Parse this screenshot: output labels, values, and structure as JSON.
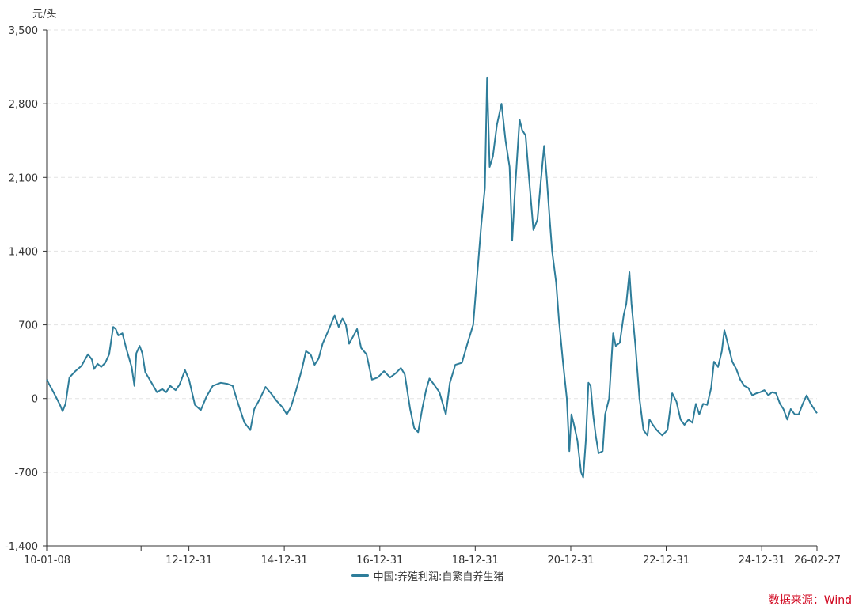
{
  "colors": {
    "series": "#2e7d9a",
    "axis": "#333333",
    "grid": "#e3e3e3",
    "source": "#d0021b"
  },
  "chart_data": {
    "type": "line",
    "y_unit": "元/头",
    "ylim": [
      -1400,
      3500
    ],
    "yticks": [
      "3,500",
      "2,800",
      "2,100",
      "1,400",
      "700",
      "0",
      "-700",
      "-1,400"
    ],
    "ytick_values": [
      3500,
      2800,
      2100,
      1400,
      700,
      0,
      -700,
      -1400
    ],
    "xlim": [
      "2010-01-08",
      "2026-02-27"
    ],
    "xtick_labels": [
      "10-01-08",
      "12-12-31",
      "14-12-31",
      "16-12-31",
      "18-12-31",
      "20-12-31",
      "22-12-31",
      "24-12-31",
      "26-02-27"
    ],
    "xtick_dates": [
      "2010-01-08",
      "2012-12-31",
      "2014-12-31",
      "2016-12-31",
      "2018-12-31",
      "2020-12-31",
      "2022-12-31",
      "2024-12-31",
      "2026-02-27"
    ],
    "minor_tick_dates": [
      "2011-12-31"
    ],
    "grid": "horizontal-dashed",
    "legend_position": "bottom-center",
    "series": [
      {
        "name": "中国:养殖利润:自繁自养生猪",
        "points": [
          [
            "2010-01-08",
            180
          ],
          [
            "2010-03-01",
            60
          ],
          [
            "2010-04-20",
            -60
          ],
          [
            "2010-05-10",
            -120
          ],
          [
            "2010-06-01",
            -50
          ],
          [
            "2010-07-01",
            200
          ],
          [
            "2010-08-15",
            260
          ],
          [
            "2010-10-01",
            310
          ],
          [
            "2010-11-20",
            420
          ],
          [
            "2010-12-20",
            370
          ],
          [
            "2011-01-05",
            280
          ],
          [
            "2011-02-01",
            330
          ],
          [
            "2011-03-01",
            300
          ],
          [
            "2011-04-01",
            340
          ],
          [
            "2011-05-01",
            420
          ],
          [
            "2011-06-01",
            680
          ],
          [
            "2011-06-20",
            660
          ],
          [
            "2011-07-10",
            600
          ],
          [
            "2011-08-10",
            620
          ],
          [
            "2011-09-10",
            470
          ],
          [
            "2011-10-20",
            300
          ],
          [
            "2011-11-10",
            120
          ],
          [
            "2011-11-25",
            430
          ],
          [
            "2011-12-20",
            500
          ],
          [
            "2012-01-10",
            430
          ],
          [
            "2012-02-01",
            250
          ],
          [
            "2012-03-15",
            160
          ],
          [
            "2012-05-01",
            60
          ],
          [
            "2012-06-10",
            90
          ],
          [
            "2012-07-10",
            60
          ],
          [
            "2012-08-10",
            120
          ],
          [
            "2012-09-20",
            80
          ],
          [
            "2012-10-20",
            130
          ],
          [
            "2012-12-01",
            270
          ],
          [
            "2013-01-01",
            180
          ],
          [
            "2013-02-15",
            -60
          ],
          [
            "2013-04-01",
            -110
          ],
          [
            "2013-05-15",
            20
          ],
          [
            "2013-07-01",
            120
          ],
          [
            "2013-09-01",
            150
          ],
          [
            "2013-10-20",
            140
          ],
          [
            "2013-12-01",
            120
          ],
          [
            "2014-01-15",
            -60
          ],
          [
            "2014-03-01",
            -230
          ],
          [
            "2014-04-15",
            -300
          ],
          [
            "2014-05-15",
            -100
          ],
          [
            "2014-06-20",
            -20
          ],
          [
            "2014-08-10",
            110
          ],
          [
            "2014-09-20",
            50
          ],
          [
            "2014-11-01",
            -20
          ],
          [
            "2014-12-15",
            -80
          ],
          [
            "2015-01-20",
            -150
          ],
          [
            "2015-02-20",
            -80
          ],
          [
            "2015-04-01",
            80
          ],
          [
            "2015-05-15",
            280
          ],
          [
            "2015-06-15",
            450
          ],
          [
            "2015-07-20",
            420
          ],
          [
            "2015-08-20",
            320
          ],
          [
            "2015-09-20",
            380
          ],
          [
            "2015-10-20",
            520
          ],
          [
            "2015-12-01",
            640
          ],
          [
            "2016-01-20",
            790
          ],
          [
            "2016-02-20",
            680
          ],
          [
            "2016-03-20",
            760
          ],
          [
            "2016-04-15",
            700
          ],
          [
            "2016-05-10",
            520
          ],
          [
            "2016-06-10",
            590
          ],
          [
            "2016-07-10",
            660
          ],
          [
            "2016-08-10",
            480
          ],
          [
            "2016-09-20",
            420
          ],
          [
            "2016-11-01",
            180
          ],
          [
            "2016-12-15",
            200
          ],
          [
            "2017-02-01",
            260
          ],
          [
            "2017-03-20",
            200
          ],
          [
            "2017-05-01",
            240
          ],
          [
            "2017-06-10",
            290
          ],
          [
            "2017-07-10",
            230
          ],
          [
            "2017-08-20",
            -100
          ],
          [
            "2017-09-20",
            -280
          ],
          [
            "2017-10-20",
            -320
          ],
          [
            "2017-11-20",
            -100
          ],
          [
            "2017-12-20",
            80
          ],
          [
            "2018-01-15",
            190
          ],
          [
            "2018-02-20",
            130
          ],
          [
            "2018-04-01",
            60
          ],
          [
            "2018-05-20",
            -150
          ],
          [
            "2018-06-20",
            150
          ],
          [
            "2018-08-01",
            320
          ],
          [
            "2018-09-20",
            340
          ],
          [
            "2018-11-01",
            520
          ],
          [
            "2018-12-15",
            700
          ],
          [
            "2019-01-10",
            1100
          ],
          [
            "2019-02-15",
            1650
          ],
          [
            "2019-03-15",
            2000
          ],
          [
            "2019-04-01",
            3050
          ],
          [
            "2019-04-20",
            2200
          ],
          [
            "2019-05-15",
            2300
          ],
          [
            "2019-06-15",
            2600
          ],
          [
            "2019-07-20",
            2800
          ],
          [
            "2019-08-20",
            2450
          ],
          [
            "2019-09-20",
            2200
          ],
          [
            "2019-10-10",
            1500
          ],
          [
            "2019-11-01",
            2000
          ],
          [
            "2019-12-05",
            2650
          ],
          [
            "2019-12-25",
            2550
          ],
          [
            "2020-01-20",
            2500
          ],
          [
            "2020-02-15",
            2100
          ],
          [
            "2020-03-20",
            1600
          ],
          [
            "2020-04-20",
            1700
          ],
          [
            "2020-05-15",
            2050
          ],
          [
            "2020-06-10",
            2400
          ],
          [
            "2020-06-30",
            2100
          ],
          [
            "2020-07-20",
            1750
          ],
          [
            "2020-08-10",
            1400
          ],
          [
            "2020-09-10",
            1100
          ],
          [
            "2020-10-01",
            750
          ],
          [
            "2020-11-01",
            350
          ],
          [
            "2020-12-01",
            0
          ],
          [
            "2020-12-20",
            -500
          ],
          [
            "2021-01-05",
            -150
          ],
          [
            "2021-01-25",
            -250
          ],
          [
            "2021-02-20",
            -400
          ],
          [
            "2021-03-20",
            -700
          ],
          [
            "2021-04-05",
            -750
          ],
          [
            "2021-04-25",
            -400
          ],
          [
            "2021-05-15",
            150
          ],
          [
            "2021-06-01",
            120
          ],
          [
            "2021-06-20",
            -150
          ],
          [
            "2021-07-10",
            -350
          ],
          [
            "2021-08-01",
            -520
          ],
          [
            "2021-09-01",
            -500
          ],
          [
            "2021-09-20",
            -150
          ],
          [
            "2021-10-20",
            0
          ],
          [
            "2021-11-20",
            620
          ],
          [
            "2021-12-10",
            500
          ],
          [
            "2022-01-10",
            530
          ],
          [
            "2022-02-10",
            800
          ],
          [
            "2022-03-01",
            900
          ],
          [
            "2022-03-25",
            1200
          ],
          [
            "2022-04-10",
            900
          ],
          [
            "2022-05-10",
            500
          ],
          [
            "2022-06-10",
            0
          ],
          [
            "2022-07-10",
            -300
          ],
          [
            "2022-08-10",
            -350
          ],
          [
            "2022-08-25",
            -200
          ],
          [
            "2022-09-20",
            -250
          ],
          [
            "2022-10-20",
            -300
          ],
          [
            "2022-12-01",
            -350
          ],
          [
            "2023-01-10",
            -300
          ],
          [
            "2023-02-15",
            50
          ],
          [
            "2023-03-20",
            -30
          ],
          [
            "2023-04-20",
            -200
          ],
          [
            "2023-05-20",
            -250
          ],
          [
            "2023-06-20",
            -200
          ],
          [
            "2023-07-20",
            -230
          ],
          [
            "2023-08-15",
            -50
          ],
          [
            "2023-09-10",
            -150
          ],
          [
            "2023-10-10",
            -50
          ],
          [
            "2023-11-10",
            -60
          ],
          [
            "2023-12-10",
            100
          ],
          [
            "2024-01-01",
            350
          ],
          [
            "2024-02-01",
            300
          ],
          [
            "2024-03-01",
            450
          ],
          [
            "2024-03-20",
            650
          ],
          [
            "2024-04-20",
            500
          ],
          [
            "2024-05-20",
            350
          ],
          [
            "2024-06-20",
            280
          ],
          [
            "2024-07-20",
            180
          ],
          [
            "2024-08-20",
            120
          ],
          [
            "2024-09-20",
            100
          ],
          [
            "2024-10-20",
            30
          ],
          [
            "2024-11-20",
            50
          ],
          [
            "2024-12-20",
            60
          ],
          [
            "2025-01-20",
            80
          ],
          [
            "2025-02-20",
            30
          ],
          [
            "2025-03-20",
            60
          ],
          [
            "2025-04-20",
            50
          ],
          [
            "2025-05-20",
            -50
          ],
          [
            "2025-06-15",
            -100
          ],
          [
            "2025-07-15",
            -200
          ],
          [
            "2025-08-10",
            -100
          ],
          [
            "2025-09-10",
            -150
          ],
          [
            "2025-10-10",
            -150
          ],
          [
            "2025-11-10",
            -50
          ],
          [
            "2025-12-10",
            30
          ],
          [
            "2026-01-10",
            -50
          ],
          [
            "2026-02-27",
            -140
          ]
        ]
      }
    ]
  },
  "legend": {
    "label": "中国:养殖利润:自繁自养生猪"
  },
  "source": "数据来源：Wind"
}
